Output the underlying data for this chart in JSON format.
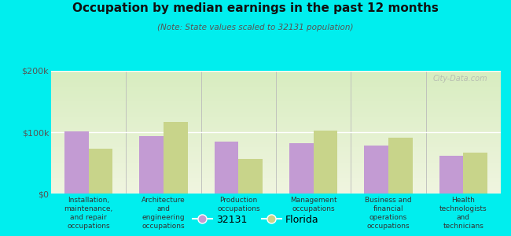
{
  "title": "Occupation by median earnings in the past 12 months",
  "subtitle": "(Note: State values scaled to 32131 population)",
  "background_color": "#00EEEE",
  "plot_bg_top": "#d8edc0",
  "plot_bg_bottom": "#f0f5e0",
  "categories": [
    "Installation,\nmaintenance,\nand repair\noccupations",
    "Architecture\nand\nengineering\noccupations",
    "Production\noccupations",
    "Management\noccupations",
    "Business and\nfinancial\noperations\noccupations",
    "Health\ntechnologists\nand\ntechnicians"
  ],
  "values_32131": [
    101000,
    93000,
    84000,
    82000,
    78000,
    62000
  ],
  "values_florida": [
    73000,
    117000,
    57000,
    103000,
    91000,
    67000
  ],
  "color_32131": "#c39bd3",
  "color_florida": "#c8d48a",
  "bar_width": 0.32,
  "ylim": [
    0,
    200000
  ],
  "yticks": [
    0,
    100000,
    200000
  ],
  "ytick_labels": [
    "$0",
    "$100k",
    "$200k"
  ],
  "legend_labels": [
    "32131",
    "Florida"
  ],
  "watermark": "City-Data.com"
}
